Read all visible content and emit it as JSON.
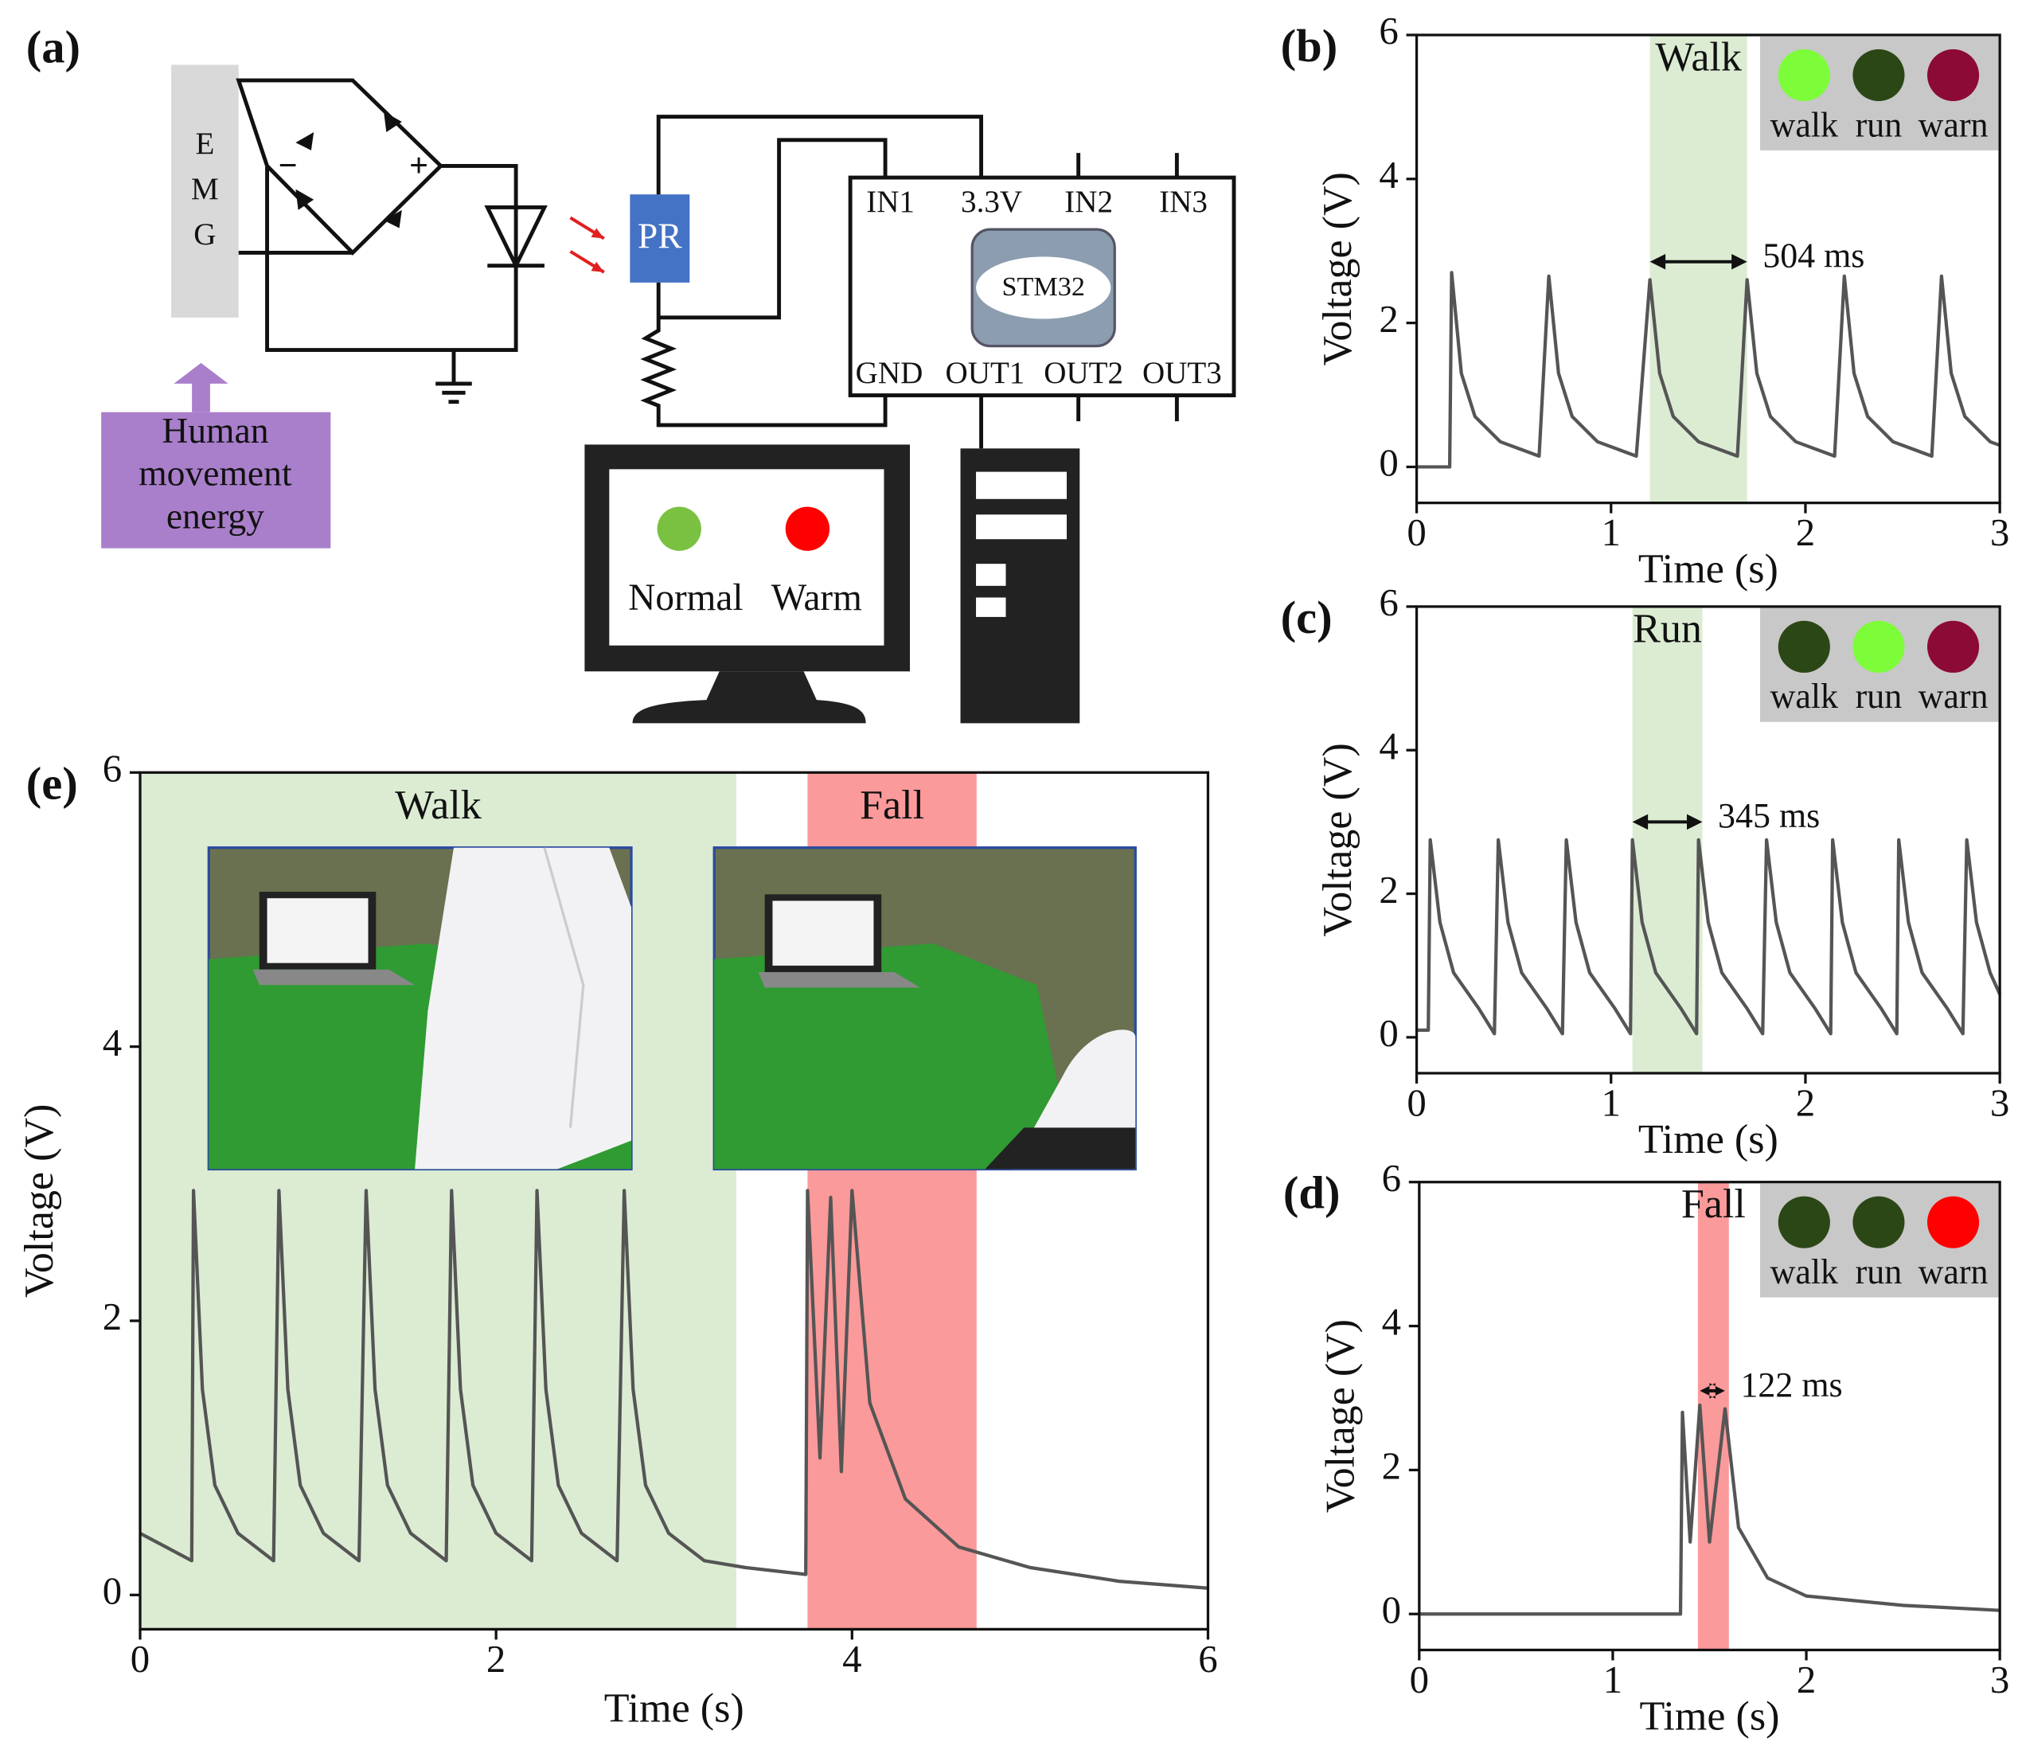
{
  "diagram": {
    "panel": "(a)",
    "emg": [
      "E",
      "M",
      "G"
    ],
    "source": [
      "Human",
      "movement",
      "energy"
    ],
    "sensor": "PR",
    "pins_top": [
      "IN1",
      "3.3V",
      "IN2",
      "IN3"
    ],
    "chip": "STM32",
    "pins_bottom": [
      "GND",
      "OUT1",
      "OUT2",
      "OUT3"
    ],
    "monitor": [
      "Normal",
      "Warm"
    ]
  },
  "chart_data": [
    {
      "type": "line",
      "panel": "(b)",
      "xlabel": "Time (s)",
      "ylabel": "Voltage (V)",
      "xlim": [
        0,
        3
      ],
      "ylim": [
        -0.5,
        6
      ],
      "xticks": [
        0,
        1,
        2,
        3
      ],
      "yticks": [
        0,
        2,
        4,
        6
      ],
      "x": [
        0,
        0.17,
        0.18,
        0.23,
        0.3,
        0.43,
        0.63,
        0.68,
        0.73,
        0.8,
        0.93,
        1.13,
        1.2,
        1.25,
        1.32,
        1.45,
        1.65,
        1.7,
        1.75,
        1.82,
        1.95,
        2.15,
        2.2,
        2.25,
        2.32,
        2.45,
        2.65,
        2.7,
        2.75,
        2.82,
        2.95,
        3.0
      ],
      "series": [
        {
          "color": "#555555",
          "values": [
            0,
            0,
            2.7,
            1.3,
            0.7,
            0.35,
            0.15,
            2.65,
            1.3,
            0.7,
            0.35,
            0.15,
            2.6,
            1.3,
            0.7,
            0.35,
            0.15,
            2.6,
            1.3,
            0.7,
            0.35,
            0.15,
            2.65,
            1.3,
            0.7,
            0.35,
            0.15,
            2.65,
            1.3,
            0.7,
            0.35,
            0.3
          ]
        }
      ],
      "regions": [
        {
          "label": "Walk",
          "start": 1.2,
          "end": 1.7,
          "color": "#dcecd3"
        }
      ],
      "annotation": {
        "text": "504 ms",
        "x": [
          1.2,
          1.7
        ],
        "y": 2.85
      },
      "indicators": [
        {
          "label": "walk",
          "color": "#7dfc3a"
        },
        {
          "label": "run",
          "color": "#2b4716"
        },
        {
          "label": "warn",
          "color": "#8c0a36"
        }
      ]
    },
    {
      "type": "line",
      "panel": "(c)",
      "xlabel": "Time (s)",
      "ylabel": "Voltage (V)",
      "xlim": [
        0,
        3
      ],
      "ylim": [
        -0.5,
        6
      ],
      "xticks": [
        0,
        1,
        2,
        3
      ],
      "yticks": [
        0,
        2,
        4,
        6
      ],
      "x": [
        0,
        0.06,
        0.07,
        0.12,
        0.19,
        0.32,
        0.4,
        0.42,
        0.47,
        0.54,
        0.67,
        0.75,
        0.77,
        0.82,
        0.89,
        1.02,
        1.1,
        1.11,
        1.16,
        1.23,
        1.36,
        1.44,
        1.45,
        1.5,
        1.57,
        1.7,
        1.78,
        1.8,
        1.85,
        1.92,
        2.05,
        2.13,
        2.14,
        2.19,
        2.26,
        2.39,
        2.47,
        2.48,
        2.53,
        2.6,
        2.73,
        2.81,
        2.83,
        2.88,
        2.95,
        3.0
      ],
      "series": [
        {
          "color": "#555555",
          "values": [
            0.1,
            0.1,
            2.75,
            1.6,
            0.9,
            0.4,
            0.05,
            2.75,
            1.6,
            0.9,
            0.4,
            0.05,
            2.75,
            1.6,
            0.9,
            0.4,
            0.05,
            2.75,
            1.6,
            0.9,
            0.4,
            0.05,
            2.75,
            1.6,
            0.9,
            0.4,
            0.05,
            2.75,
            1.6,
            0.9,
            0.4,
            0.05,
            2.75,
            1.6,
            0.9,
            0.4,
            0.05,
            2.75,
            1.6,
            0.9,
            0.4,
            0.05,
            2.75,
            1.6,
            0.9,
            0.6
          ]
        }
      ],
      "regions": [
        {
          "label": "Run",
          "start": 1.11,
          "end": 1.47,
          "color": "#dcecd3"
        }
      ],
      "annotation": {
        "text": "345 ms",
        "x": [
          1.11,
          1.47
        ],
        "y": 3.0
      },
      "indicators": [
        {
          "label": "walk",
          "color": "#2b4716"
        },
        {
          "label": "run",
          "color": "#7dfc3a"
        },
        {
          "label": "warn",
          "color": "#8c0a36"
        }
      ]
    },
    {
      "type": "line",
      "panel": "(d)",
      "xlabel": "Time (s)",
      "ylabel": "Voltage (V)",
      "xlim": [
        0,
        3
      ],
      "ylim": [
        -0.5,
        6
      ],
      "xticks": [
        0,
        1,
        2,
        3
      ],
      "yticks": [
        0,
        2,
        4,
        6
      ],
      "x": [
        0,
        1.35,
        1.36,
        1.4,
        1.45,
        1.5,
        1.58,
        1.65,
        1.8,
        2.0,
        2.5,
        3.0
      ],
      "series": [
        {
          "color": "#555555",
          "values": [
            0,
            0,
            2.8,
            1.0,
            2.9,
            1.0,
            2.85,
            1.2,
            0.5,
            0.25,
            0.12,
            0.05
          ]
        }
      ],
      "regions": [
        {
          "label": "Fall",
          "start": 1.44,
          "end": 1.6,
          "color": "#fb9a9a"
        }
      ],
      "annotation": {
        "text": "122 ms",
        "x": [
          1.45,
          1.58
        ],
        "y": 3.1
      },
      "indicators": [
        {
          "label": "walk",
          "color": "#2b4716"
        },
        {
          "label": "run",
          "color": "#2b4716"
        },
        {
          "label": "warn",
          "color": "#ff0000"
        }
      ]
    },
    {
      "type": "line",
      "panel": "(e)",
      "xlabel": "Time (s)",
      "ylabel": "Voltage (V)",
      "xlim": [
        0,
        6
      ],
      "ylim": [
        -0.25,
        6
      ],
      "xticks": [
        0,
        2,
        4,
        6
      ],
      "yticks": [
        0,
        2,
        4,
        6
      ],
      "x": [
        0,
        0.29,
        0.3,
        0.35,
        0.42,
        0.55,
        0.75,
        0.78,
        0.83,
        0.9,
        1.03,
        1.23,
        1.27,
        1.32,
        1.39,
        1.52,
        1.72,
        1.75,
        1.8,
        1.87,
        2.0,
        2.2,
        2.23,
        2.28,
        2.35,
        2.48,
        2.68,
        2.72,
        2.77,
        2.84,
        2.97,
        3.17,
        3.4,
        3.74,
        3.75,
        3.82,
        3.88,
        3.94,
        4.0,
        4.1,
        4.3,
        4.6,
        5.0,
        5.5,
        6.0
      ],
      "series": [
        {
          "color": "#555555",
          "values": [
            0.45,
            0.25,
            2.95,
            1.5,
            0.8,
            0.45,
            0.25,
            2.95,
            1.5,
            0.8,
            0.45,
            0.25,
            2.95,
            1.5,
            0.8,
            0.45,
            0.25,
            2.95,
            1.5,
            0.8,
            0.45,
            0.25,
            2.95,
            1.5,
            0.8,
            0.45,
            0.25,
            2.95,
            1.5,
            0.8,
            0.45,
            0.25,
            0.2,
            0.15,
            2.95,
            1.0,
            2.9,
            0.9,
            2.95,
            1.4,
            0.7,
            0.35,
            0.2,
            0.1,
            0.05
          ]
        }
      ],
      "regions": [
        {
          "label": "Walk",
          "start": 0,
          "end": 3.35,
          "color": "#dcecd3"
        },
        {
          "label": "Fall",
          "start": 3.75,
          "end": 4.7,
          "color": "#fb9a9a"
        }
      ]
    }
  ]
}
